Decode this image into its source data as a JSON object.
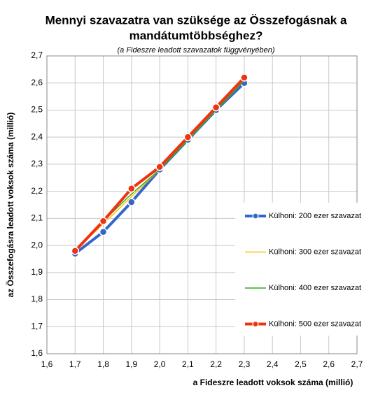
{
  "chart_data": {
    "type": "line",
    "title": [
      "Mennyi szavazatra van szüksége az Összefogásnak a",
      "mandátumtöbbséghez?"
    ],
    "subtitle": "(a Fideszre leadott szavazatok függvényében)",
    "x_label": "a Fideszre leadott voksok száma (millió)",
    "y_label": "az Összefogásra leadott voksok száma (millió)",
    "x": [
      1.7,
      1.8,
      1.9,
      2.0,
      2.1,
      2.2,
      2.3
    ],
    "series": [
      {
        "name": "Külhoni: 200 ezer szavazat",
        "color": "#3366cc",
        "markers": true,
        "values": [
          1.97,
          2.05,
          2.16,
          2.28,
          2.39,
          2.5,
          2.6
        ]
      },
      {
        "name": "Külhoni: 300 ezer szavazat",
        "color": "#ffc000",
        "markers": false,
        "values": [
          1.98,
          2.08,
          2.18,
          2.28,
          2.39,
          2.5,
          2.61
        ]
      },
      {
        "name": "Külhoni: 400 ezer szavazat",
        "color": "#33aa22",
        "markers": false,
        "values": [
          1.98,
          2.09,
          2.19,
          2.28,
          2.39,
          2.5,
          2.61
        ]
      },
      {
        "name": "Külhoni: 500 ezer szavazat",
        "color": "#ee3311",
        "markers": true,
        "values": [
          1.98,
          2.09,
          2.21,
          2.29,
          2.4,
          2.51,
          2.62
        ]
      }
    ],
    "xlim": [
      1.6,
      2.7
    ],
    "ylim": [
      1.6,
      2.7
    ],
    "xticks": [
      {
        "value": 1.6,
        "label": "1,6"
      },
      {
        "value": 1.7,
        "label": "1,7"
      },
      {
        "value": 1.8,
        "label": "1,8"
      },
      {
        "value": 1.9,
        "label": "1,9"
      },
      {
        "value": 2.0,
        "label": "2,0"
      },
      {
        "value": 2.1,
        "label": "2,1"
      },
      {
        "value": 2.2,
        "label": "2,2"
      },
      {
        "value": 2.3,
        "label": "2,3"
      },
      {
        "value": 2.4,
        "label": "2,4"
      },
      {
        "value": 2.5,
        "label": "2,5"
      },
      {
        "value": 2.6,
        "label": "2,6"
      },
      {
        "value": 2.7,
        "label": "2,7"
      }
    ],
    "yticks": [
      {
        "value": 1.6,
        "label": "1,6"
      },
      {
        "value": 1.7,
        "label": "1,7"
      },
      {
        "value": 1.8,
        "label": "1,8"
      },
      {
        "value": 1.9,
        "label": "1,9"
      },
      {
        "value": 2.0,
        "label": "2,0"
      },
      {
        "value": 2.1,
        "label": "2,1"
      },
      {
        "value": 2.2,
        "label": "2,2"
      },
      {
        "value": 2.3,
        "label": "2,3"
      },
      {
        "value": 2.4,
        "label": "2,4"
      },
      {
        "value": 2.5,
        "label": "2,5"
      },
      {
        "value": 2.6,
        "label": "2,6"
      },
      {
        "value": 2.7,
        "label": "2,7"
      }
    ],
    "grid": true
  }
}
